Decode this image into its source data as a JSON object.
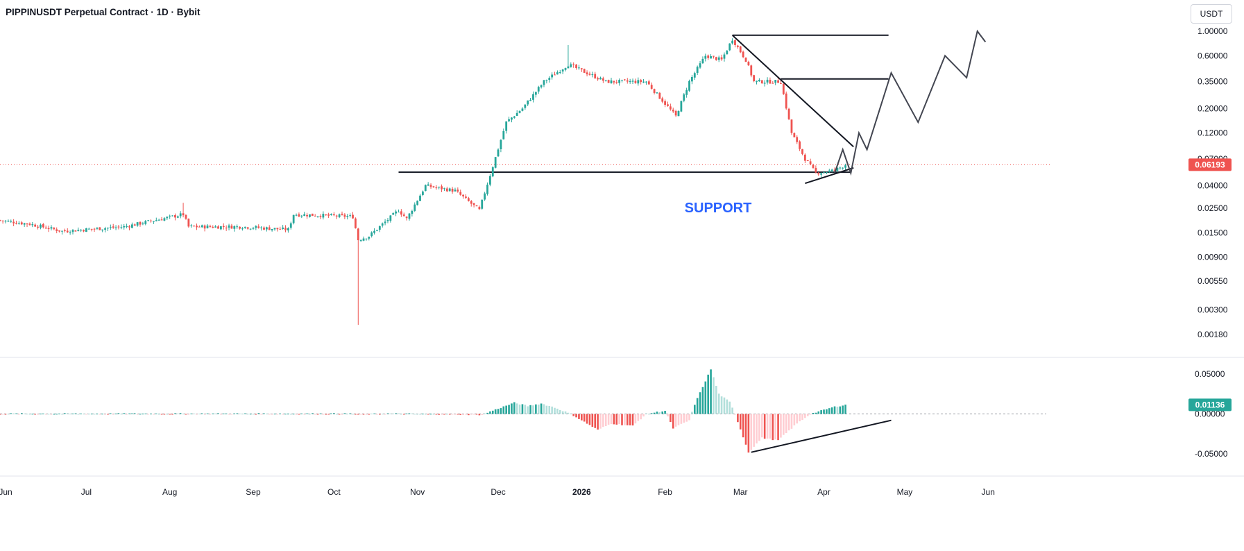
{
  "header": {
    "title": "PIPPINUSDT Perpetual Contract · 1D · Bybit",
    "unit_button": "USDT"
  },
  "colors": {
    "up": "#26a69a",
    "down": "#ef5350",
    "up_light": "#b2dfdb",
    "down_light": "#ffcdd2",
    "annotation": "#131722",
    "support_text": "#2962ff"
  },
  "chart_data": [
    {
      "type": "candlestick",
      "yscale": "log",
      "ylim": [
        0.0012,
        1.4
      ],
      "y_ticks": [
        "1.00000",
        "0.60000",
        "0.35000",
        "0.20000",
        "0.12000",
        "0.07000",
        "0.04000",
        "0.02500",
        "0.01500",
        "0.00900",
        "0.00550",
        "0.00300",
        "0.00180"
      ],
      "x_ticks": [
        "Jun",
        "Jul",
        "Aug",
        "Sep",
        "Oct",
        "Nov",
        "Dec",
        "2026",
        "Feb",
        "Mar",
        "Apr",
        "May",
        "Jun"
      ],
      "last_price": "0.06193",
      "annotation_text": "SUPPORT",
      "support_level": 0.053,
      "anchors": [
        {
          "date": "2025-05-25",
          "close": 0.02
        },
        {
          "date": "2025-06-10",
          "close": 0.018
        },
        {
          "date": "2025-06-22",
          "close": 0.0155
        },
        {
          "date": "2025-07-15",
          "close": 0.017
        },
        {
          "date": "2025-08-06",
          "close": 0.022
        },
        {
          "date": "2025-08-08",
          "close": 0.017
        },
        {
          "date": "2025-08-28",
          "close": 0.017
        },
        {
          "date": "2025-09-14",
          "close": 0.016
        },
        {
          "date": "2025-09-16",
          "close": 0.022
        },
        {
          "date": "2025-10-08",
          "close": 0.021
        },
        {
          "date": "2025-10-10",
          "close": 0.013
        },
        {
          "date": "2025-10-14",
          "close": 0.014
        },
        {
          "date": "2025-10-25",
          "close": 0.024
        },
        {
          "date": "2025-10-28",
          "close": 0.02
        },
        {
          "date": "2025-11-04",
          "close": 0.04
        },
        {
          "date": "2025-11-15",
          "close": 0.036
        },
        {
          "date": "2025-11-24",
          "close": 0.024
        },
        {
          "date": "2025-11-29",
          "close": 0.06
        },
        {
          "date": "2025-12-04",
          "close": 0.15
        },
        {
          "date": "2025-12-10",
          "close": 0.2
        },
        {
          "date": "2025-12-18",
          "close": 0.35
        },
        {
          "date": "2025-12-27",
          "close": 0.5
        },
        {
          "date": "2026-01-10",
          "close": 0.35
        },
        {
          "date": "2026-01-25",
          "close": 0.35
        },
        {
          "date": "2026-02-05",
          "close": 0.17
        },
        {
          "date": "2026-02-10",
          "close": 0.35
        },
        {
          "date": "2026-02-16",
          "close": 0.6
        },
        {
          "date": "2026-02-22",
          "close": 0.55
        },
        {
          "date": "2026-02-26",
          "close": 0.85
        },
        {
          "date": "2026-03-03",
          "close": 0.55
        },
        {
          "date": "2026-03-06",
          "close": 0.35
        },
        {
          "date": "2026-03-16",
          "close": 0.35
        },
        {
          "date": "2026-03-20",
          "close": 0.12
        },
        {
          "date": "2026-03-25",
          "close": 0.07
        },
        {
          "date": "2026-03-29",
          "close": 0.052
        },
        {
          "date": "2026-04-05",
          "close": 0.055
        },
        {
          "date": "2026-04-09",
          "close": 0.06193
        }
      ],
      "wicks": [
        {
          "date": "2025-10-10",
          "low": 0.0022
        },
        {
          "date": "2025-12-27",
          "high": 0.75
        },
        {
          "date": "2025-08-06",
          "high": 0.028
        }
      ]
    },
    {
      "type": "histogram",
      "ylim": [
        -0.056,
        0.066
      ],
      "y_ticks": [
        "0.05000",
        "0.00000",
        "-0.05000"
      ],
      "last_value": "0.01136",
      "anchors": [
        {
          "date": "2025-05-25",
          "value": 0.0003
        },
        {
          "date": "2025-10-08",
          "value": 0.0003
        },
        {
          "date": "2025-10-10",
          "value": -0.001
        },
        {
          "date": "2025-10-20",
          "value": 0.0005
        },
        {
          "date": "2025-11-25",
          "value": -0.001
        },
        {
          "date": "2025-11-28",
          "value": 0.003
        },
        {
          "date": "2025-12-07",
          "value": 0.014
        },
        {
          "date": "2025-12-12",
          "value": 0.01
        },
        {
          "date": "2025-12-17",
          "value": 0.013
        },
        {
          "date": "2025-12-22",
          "value": 0.008
        },
        {
          "date": "2025-12-28",
          "value": 0.0
        },
        {
          "date": "2026-01-07",
          "value": -0.02
        },
        {
          "date": "2026-01-12",
          "value": -0.012
        },
        {
          "date": "2026-01-20",
          "value": -0.015
        },
        {
          "date": "2026-01-25",
          "value": 0.0
        },
        {
          "date": "2026-02-01",
          "value": 0.004
        },
        {
          "date": "2026-02-04",
          "value": -0.018
        },
        {
          "date": "2026-02-10",
          "value": -0.008
        },
        {
          "date": "2026-02-12",
          "value": 0.012
        },
        {
          "date": "2026-02-18",
          "value": 0.056
        },
        {
          "date": "2026-02-21",
          "value": 0.025
        },
        {
          "date": "2026-02-25",
          "value": 0.015
        },
        {
          "date": "2026-02-27",
          "value": 0.0
        },
        {
          "date": "2026-03-04",
          "value": -0.048
        },
        {
          "date": "2026-03-09",
          "value": -0.03
        },
        {
          "date": "2026-03-15",
          "value": -0.033
        },
        {
          "date": "2026-03-22",
          "value": -0.012
        },
        {
          "date": "2026-03-27",
          "value": 0.0
        },
        {
          "date": "2026-04-05",
          "value": 0.009
        },
        {
          "date": "2026-04-09",
          "value": 0.01136
        }
      ]
    }
  ]
}
